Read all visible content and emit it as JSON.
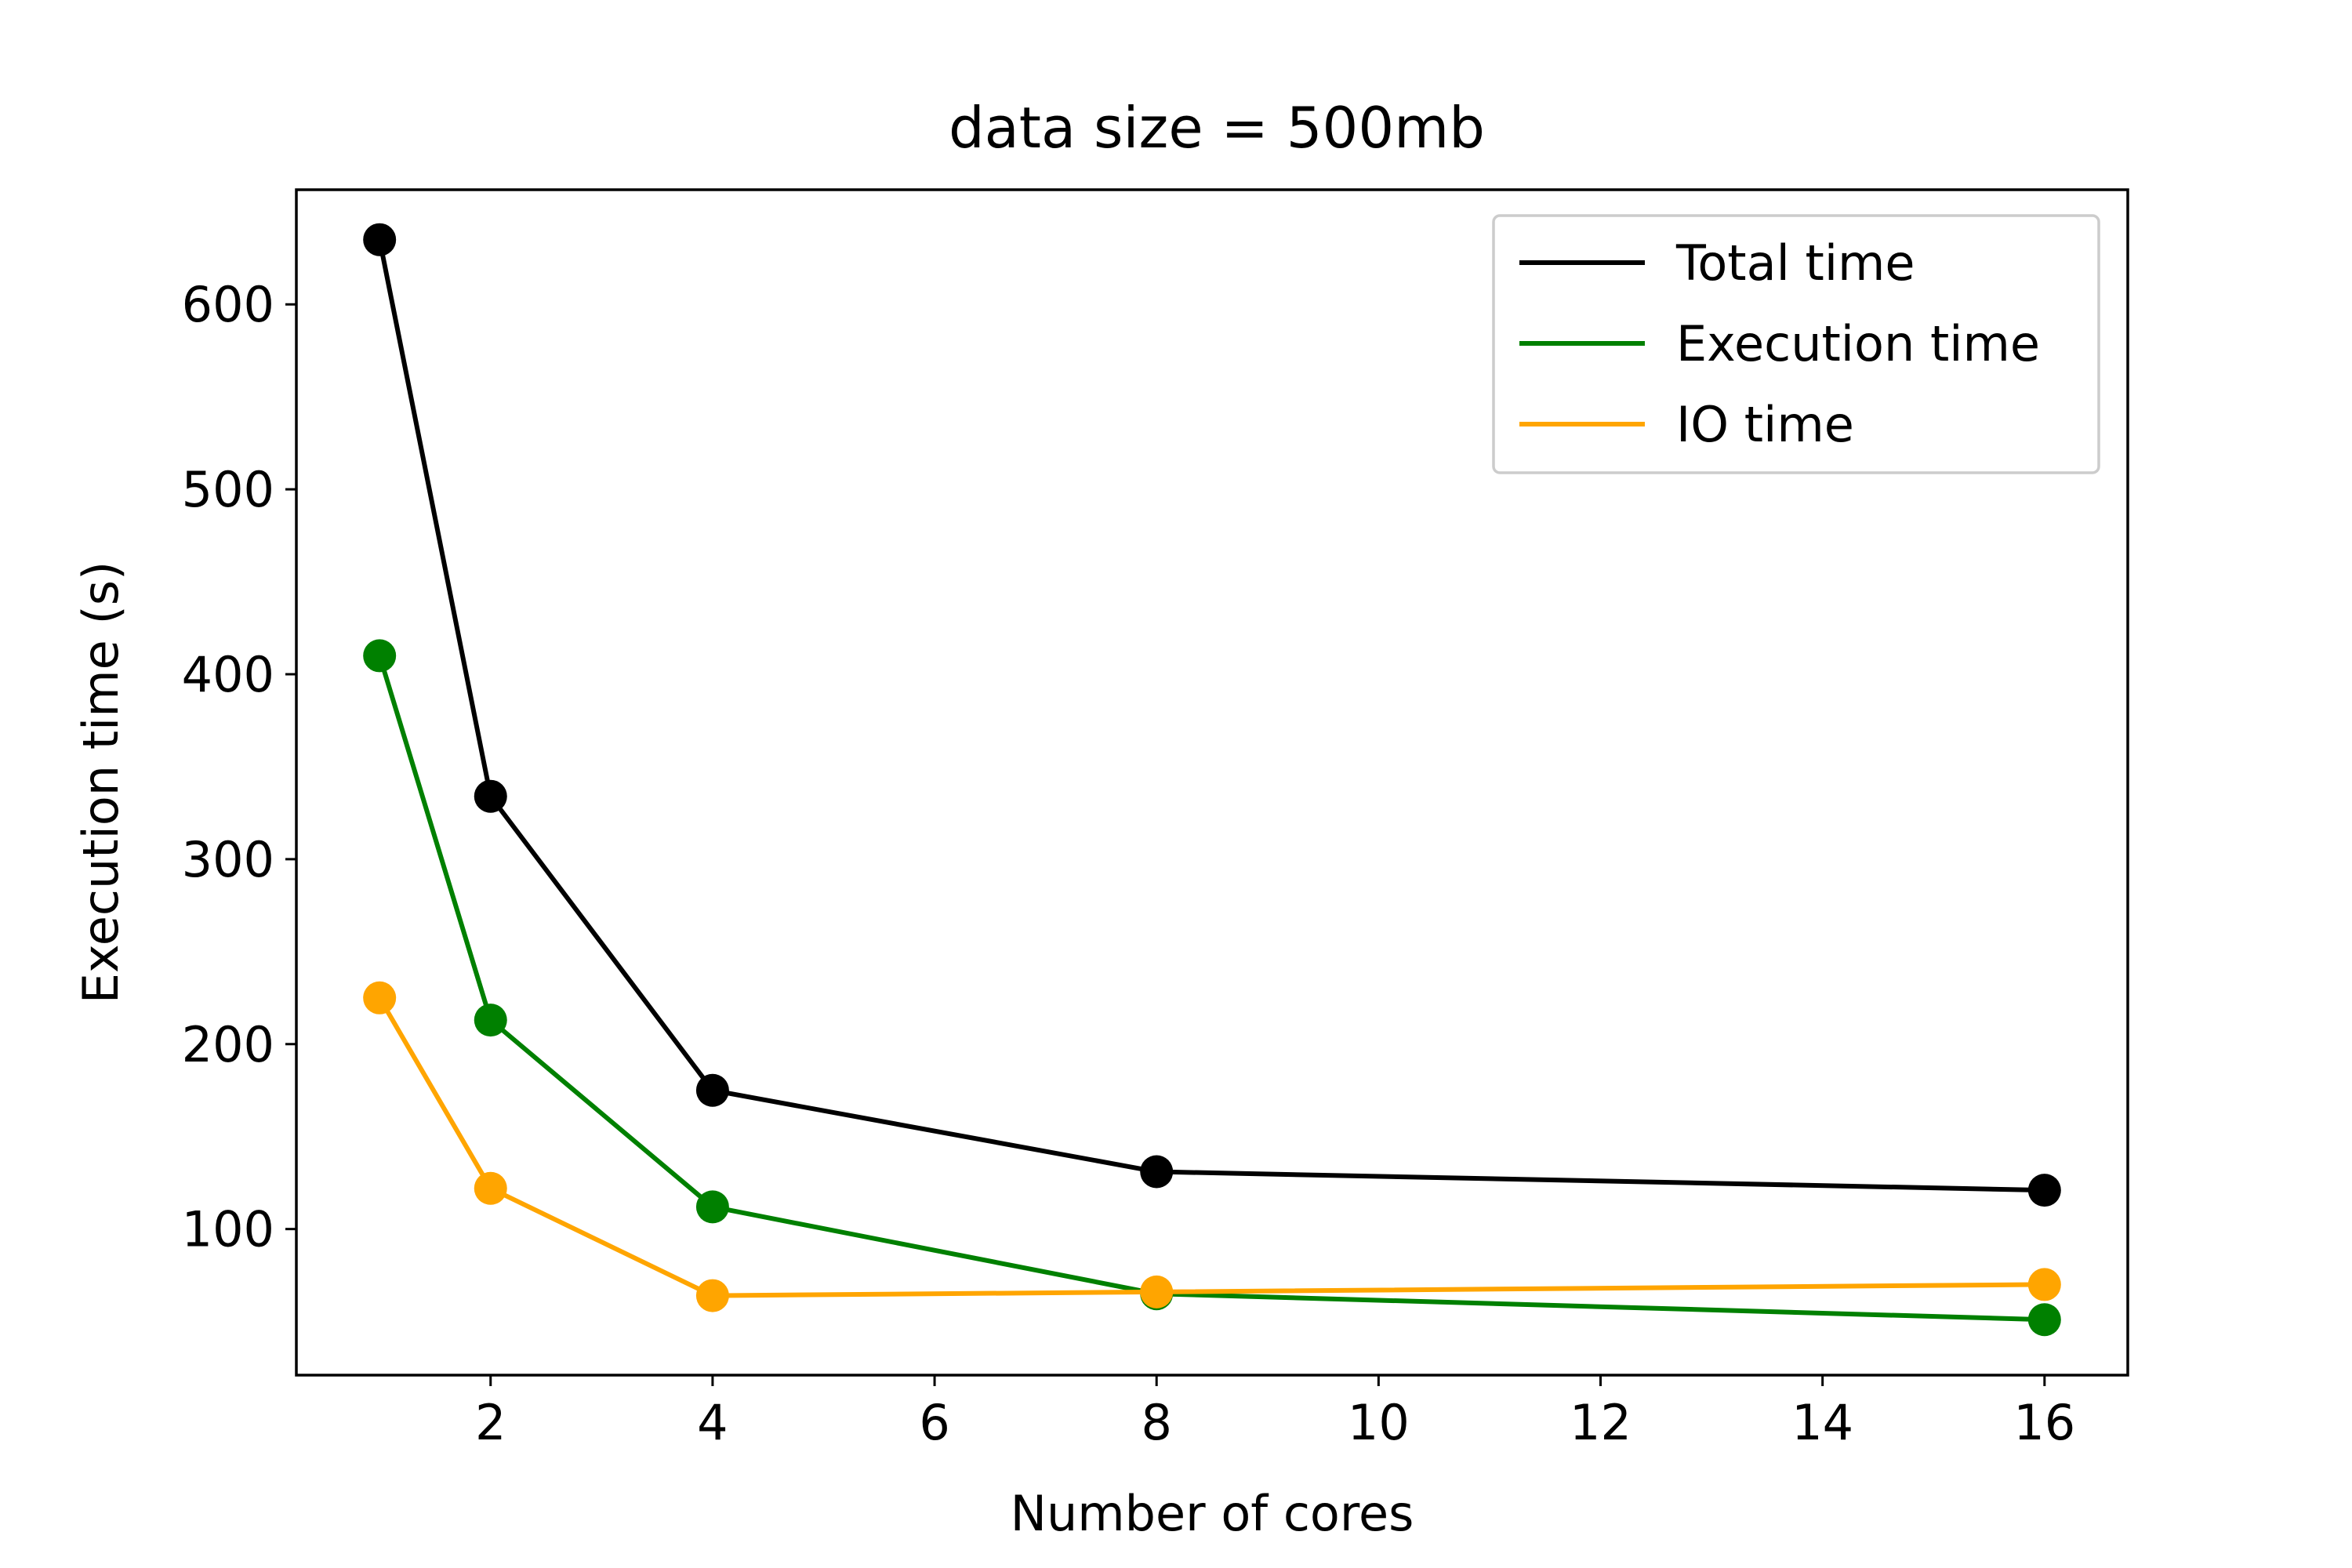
{
  "chart_data": {
    "type": "line",
    "title": "data size = 500mb",
    "xlabel": "Number of cores",
    "ylabel": "Execution time (s)",
    "x": [
      1,
      2,
      4,
      8,
      16
    ],
    "xlim": [
      0.25,
      16.75
    ],
    "ylim": [
      21,
      662
    ],
    "xticks": [
      2,
      4,
      6,
      8,
      10,
      12,
      14,
      16
    ],
    "yticks": [
      100,
      200,
      300,
      400,
      500,
      600
    ],
    "grid": false,
    "legend_position": "top-right",
    "series": [
      {
        "name": "Total time",
        "color": "#000000",
        "values": [
          635,
          334,
          175,
          131,
          121
        ]
      },
      {
        "name": "Execution time",
        "color": "#008000",
        "values": [
          410,
          213,
          112,
          65,
          51
        ]
      },
      {
        "name": "IO time",
        "color": "#FFA500",
        "values": [
          225,
          122,
          64,
          66,
          70
        ]
      }
    ]
  }
}
